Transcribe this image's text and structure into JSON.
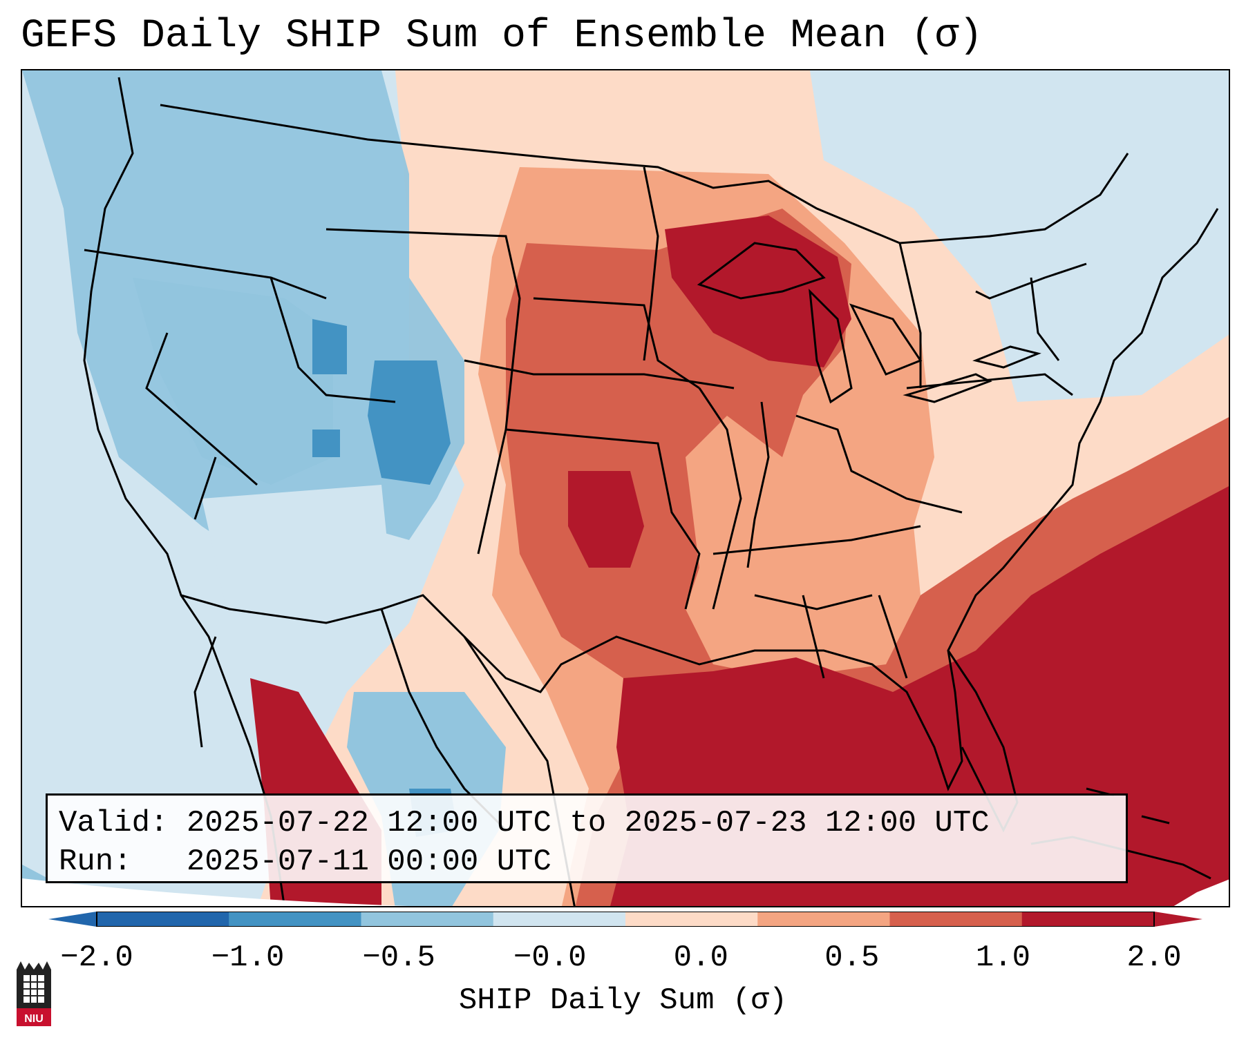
{
  "title": "GEFS Daily SHIP Sum of Ensemble Mean (σ)",
  "info": {
    "valid_label": "Valid:",
    "valid_value": "2025-07-22 12:00 UTC to 2025-07-23 12:00 UTC",
    "run_label": "Run:",
    "run_value": "2025-07-11 00:00 UTC"
  },
  "colorbar": {
    "label": "SHIP Daily Sum (σ)",
    "ticks": [
      "−2.0",
      "−1.0",
      "−0.5",
      "−0.0",
      "0.0",
      "0.5",
      "1.0",
      "2.0"
    ],
    "colors": [
      "#2166ac",
      "#4393c3",
      "#92c5de",
      "#d1e5f0",
      "#fddbc7",
      "#f4a582",
      "#d6604d",
      "#b2182b"
    ]
  },
  "logo": {
    "text": "NIU",
    "icon": "university-tower-icon"
  }
}
